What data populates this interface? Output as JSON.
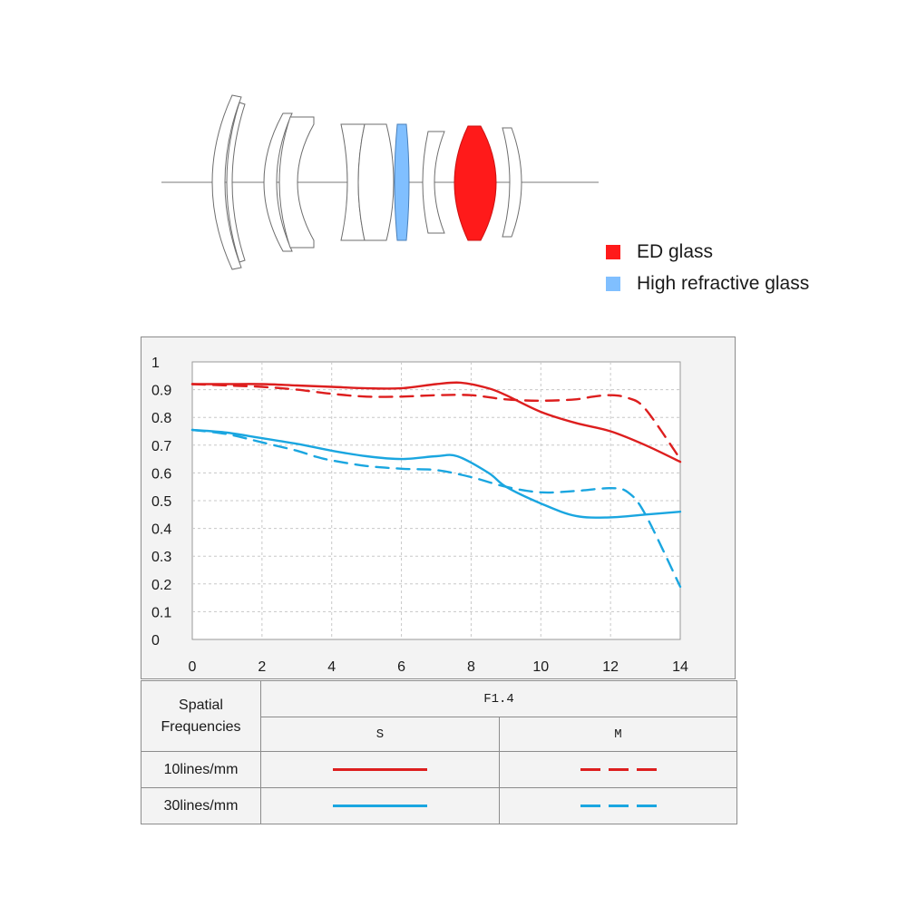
{
  "legend": {
    "items": [
      {
        "label": "ED glass",
        "color": "#ff1a1a"
      },
      {
        "label": "High refractive glass",
        "color": "#80bfff"
      }
    ]
  },
  "chart_data": {
    "type": "line",
    "title": "",
    "xlabel": "",
    "ylabel": "",
    "xlim": [
      0,
      14
    ],
    "ylim": [
      0,
      1
    ],
    "x_ticks": [
      "0",
      "2",
      "4",
      "6",
      "8",
      "10",
      "12",
      "14"
    ],
    "y_ticks": [
      "0",
      "0.1",
      "0.2",
      "0.3",
      "0.4",
      "0.5",
      "0.6",
      "0.7",
      "0.8",
      "0.9",
      "1"
    ],
    "grid": true,
    "series": [
      {
        "name": "10lines/mm S",
        "color": "#dd1e1e",
        "style": "solid",
        "x": [
          0,
          1,
          2,
          3,
          4,
          5,
          6,
          7,
          7.7,
          8.5,
          9,
          10,
          11,
          12,
          13,
          14
        ],
        "y": [
          0.92,
          0.92,
          0.92,
          0.915,
          0.91,
          0.905,
          0.905,
          0.92,
          0.925,
          0.905,
          0.88,
          0.82,
          0.78,
          0.75,
          0.7,
          0.64
        ]
      },
      {
        "name": "10lines/mm M",
        "color": "#dd1e1e",
        "style": "dashed",
        "x": [
          0,
          1,
          2,
          3,
          4,
          5,
          6,
          7,
          8,
          9,
          10,
          11,
          11.5,
          12,
          12.5,
          13,
          14
        ],
        "y": [
          0.92,
          0.915,
          0.91,
          0.9,
          0.885,
          0.875,
          0.875,
          0.88,
          0.88,
          0.865,
          0.86,
          0.865,
          0.875,
          0.88,
          0.87,
          0.83,
          0.65
        ]
      },
      {
        "name": "30lines/mm S",
        "color": "#1aa6e0",
        "style": "solid",
        "x": [
          0,
          1,
          2,
          3,
          4,
          5,
          6,
          7,
          7.6,
          8.5,
          9,
          10,
          11,
          12,
          13,
          14
        ],
        "y": [
          0.755,
          0.745,
          0.725,
          0.705,
          0.68,
          0.66,
          0.65,
          0.66,
          0.66,
          0.6,
          0.55,
          0.49,
          0.445,
          0.44,
          0.45,
          0.46
        ]
      },
      {
        "name": "30lines/mm M",
        "color": "#1aa6e0",
        "style": "dashed",
        "x": [
          0,
          1,
          2,
          3,
          3.5,
          4,
          5,
          6,
          7,
          8,
          9,
          10,
          11,
          12,
          12.5,
          13,
          14
        ],
        "y": [
          0.755,
          0.74,
          0.71,
          0.68,
          0.66,
          0.645,
          0.625,
          0.615,
          0.61,
          0.585,
          0.55,
          0.53,
          0.535,
          0.545,
          0.53,
          0.45,
          0.19
        ]
      }
    ]
  },
  "table": {
    "header_label": "Spatial\nFrequencies",
    "aperture": "F1.4",
    "col_s": "S",
    "col_m": "M",
    "rows": [
      {
        "label": "10lines/mm",
        "color": "#dd1e1e"
      },
      {
        "label": "30lines/mm",
        "color": "#1aa6e0"
      }
    ]
  }
}
